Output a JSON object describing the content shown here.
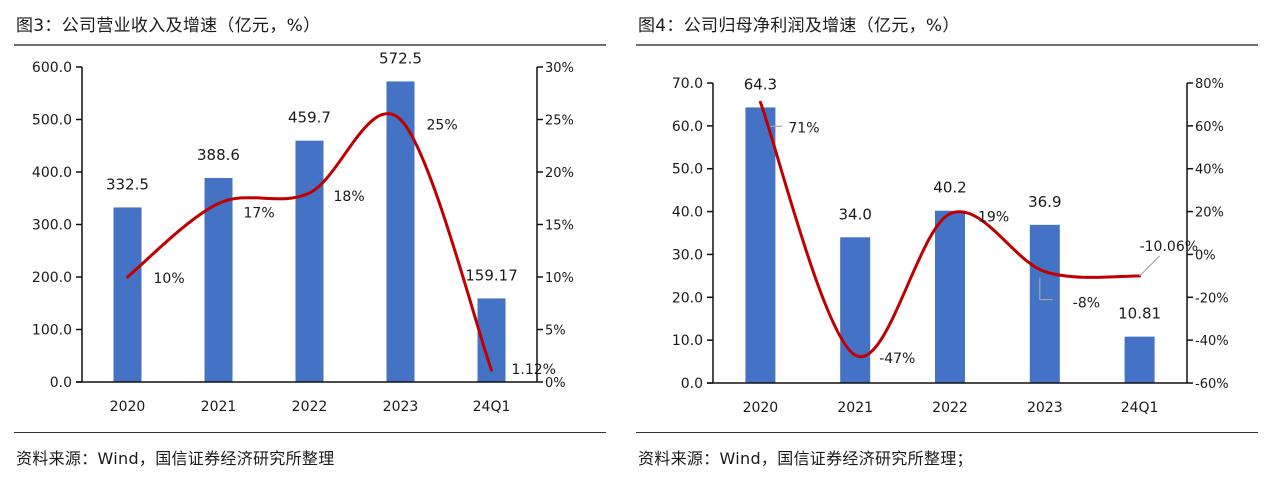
{
  "chart_data": [
    {
      "id": "fig3",
      "type": "bar",
      "title": "图3：公司营业收入及增速（亿元，%）",
      "source": "资料来源：Wind，国信证券经济研究所整理",
      "categories": [
        "2020",
        "2021",
        "2022",
        "2023",
        "24Q1"
      ],
      "series": [
        {
          "name": "营业收入（亿元）",
          "type": "bar",
          "axis": "left",
          "color": "#4472C4",
          "values": [
            332.5,
            388.6,
            459.7,
            572.5,
            159.17
          ],
          "labels": [
            "332.5",
            "388.6",
            "459.7",
            "572.5",
            "159.17"
          ]
        },
        {
          "name": "增速（%）",
          "type": "line",
          "axis": "right",
          "color": "#C00000",
          "smooth": true,
          "values": [
            10,
            17,
            18,
            25,
            1.12
          ],
          "labels": [
            "10%",
            "17%",
            "18%",
            "25%",
            "1.12%"
          ]
        }
      ],
      "left_axis": {
        "min": 0,
        "max": 600,
        "step": 100,
        "ticks": [
          "0.0",
          "100.0",
          "200.0",
          "300.0",
          "400.0",
          "500.0",
          "600.0"
        ]
      },
      "right_axis": {
        "min": 0,
        "max": 30,
        "step": 5,
        "ticks": [
          "0%",
          "5%",
          "10%",
          "15%",
          "20%",
          "25%",
          "30%"
        ]
      },
      "grid": false,
      "legend": "none"
    },
    {
      "id": "fig4",
      "type": "bar",
      "title": "图4：公司归母净利润及增速（亿元，%）",
      "source": "资料来源：Wind，国信证券经济研究所整理；",
      "categories": [
        "2020",
        "2021",
        "2022",
        "2023",
        "24Q1"
      ],
      "series": [
        {
          "name": "归母净利润（亿元）",
          "type": "bar",
          "axis": "left",
          "color": "#4472C4",
          "values": [
            64.3,
            34.0,
            40.2,
            36.9,
            10.81
          ],
          "labels": [
            "64.3",
            "34.0",
            "40.2",
            "36.9",
            "10.81"
          ]
        },
        {
          "name": "增速（%）",
          "type": "line",
          "axis": "right",
          "color": "#C00000",
          "smooth": true,
          "values": [
            71,
            -47,
            19,
            -8,
            -10.06
          ],
          "labels": [
            "71%",
            "-47%",
            "19%",
            "-8%",
            "-10.06%"
          ]
        }
      ],
      "left_axis": {
        "min": 0,
        "max": 70,
        "step": 10,
        "ticks": [
          "0.0",
          "10.0",
          "20.0",
          "30.0",
          "40.0",
          "50.0",
          "60.0",
          "70.0"
        ]
      },
      "right_axis": {
        "min": -60,
        "max": 80,
        "step": 20,
        "ticks": [
          "-60%",
          "-40%",
          "-20%",
          "0%",
          "20%",
          "40%",
          "60%",
          "80%"
        ]
      },
      "grid": false,
      "legend": "none"
    }
  ]
}
